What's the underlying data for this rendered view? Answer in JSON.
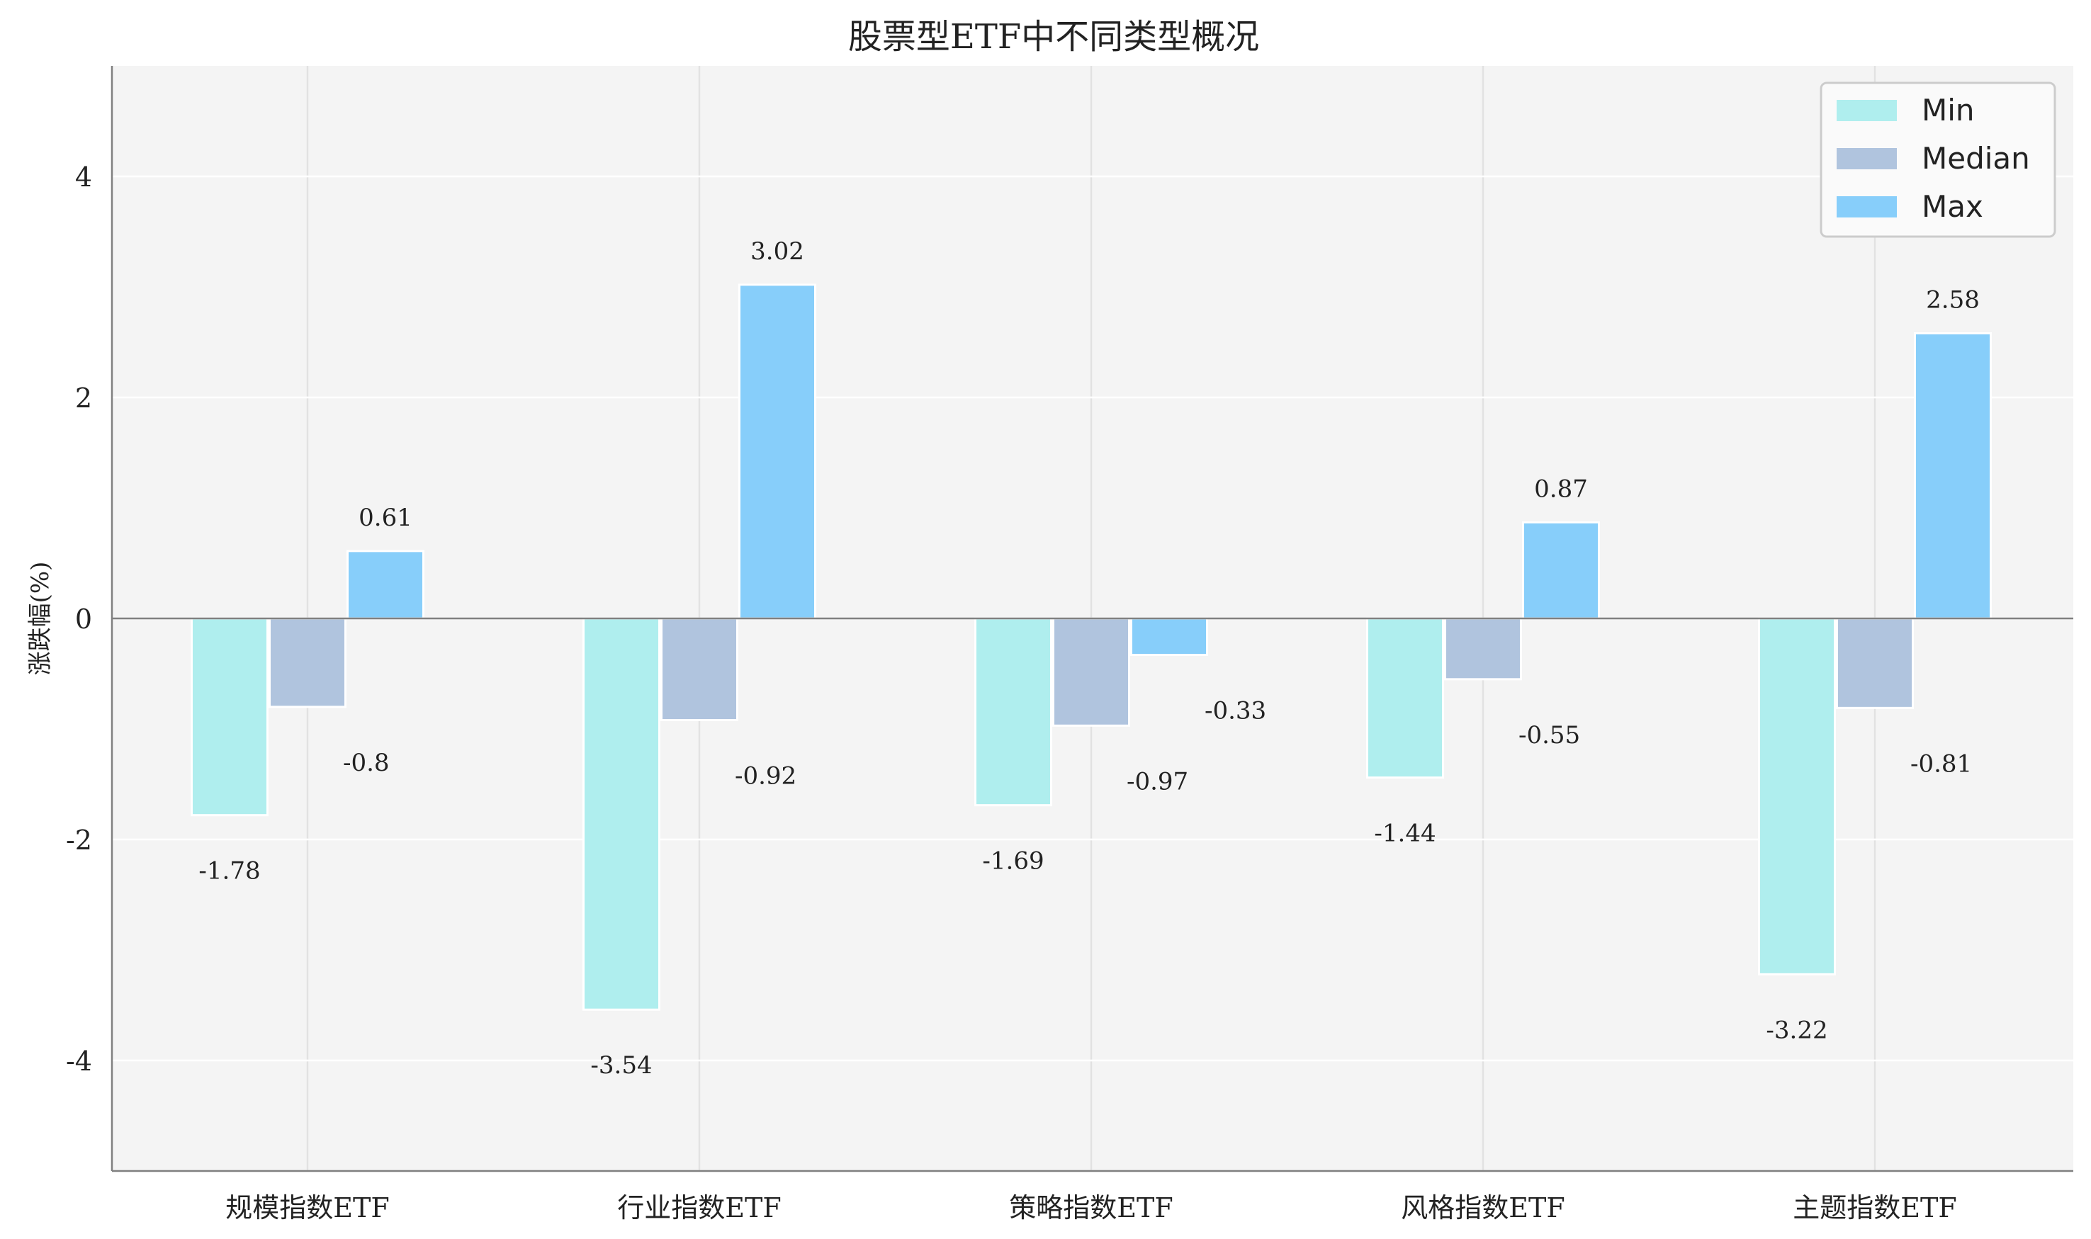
{
  "chart_data": {
    "type": "bar",
    "title": "股票型ETF中不同类型概况",
    "xlabel": "",
    "ylabel": "涨跌幅(%)",
    "ylim": [
      -5,
      5
    ],
    "yticks": [
      4,
      2,
      0,
      -2,
      -4
    ],
    "categories": [
      "规模指数ETF",
      "行业指数ETF",
      "策略指数ETF",
      "风格指数ETF",
      "主题指数ETF"
    ],
    "series": [
      {
        "name": "Min",
        "color": "#AFEEEE",
        "values": [
          -1.78,
          -3.54,
          -1.69,
          -1.44,
          -3.22
        ],
        "labels": [
          "-1.78",
          "-3.54",
          "-1.69",
          "-1.44",
          "-3.22"
        ]
      },
      {
        "name": "Median",
        "color": "#B0C4DE",
        "values": [
          -0.8,
          -0.92,
          -0.97,
          -0.55,
          -0.81
        ],
        "labels": [
          "-0.8",
          "-0.92",
          "-0.97",
          "-0.55",
          "-0.81"
        ]
      },
      {
        "name": "Max",
        "color": "#87CEFA",
        "values": [
          0.61,
          3.02,
          -0.33,
          0.87,
          2.58
        ],
        "labels": [
          "0.61",
          "3.02",
          "-0.33",
          "0.87",
          "2.58"
        ]
      }
    ],
    "grid": true,
    "legend_position": "top-right",
    "colors": {
      "plot_background": "#F4F4F4",
      "zero_line": "#808080",
      "axis": "#808080"
    }
  }
}
